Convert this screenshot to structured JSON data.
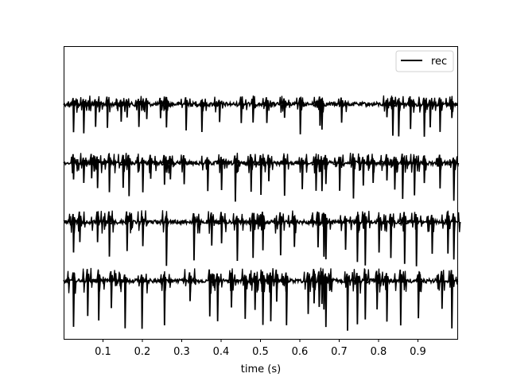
{
  "chart_data": {
    "type": "line",
    "title": "",
    "xlabel": "time (s)",
    "ylabel": "",
    "xlim": [
      0.0,
      1.0
    ],
    "xticks": [
      0.1,
      0.2,
      0.3,
      0.4,
      0.5,
      0.6,
      0.7,
      0.8,
      0.9
    ],
    "xtick_labels": [
      "0.1",
      "0.2",
      "0.3",
      "0.4",
      "0.5",
      "0.6",
      "0.7",
      "0.8",
      "0.9"
    ],
    "yticks_visible": false,
    "grid": false,
    "legend": {
      "location": "upper right",
      "entries": [
        "rec"
      ]
    },
    "line_color": "#000000",
    "series": [
      {
        "name": "rec",
        "channels": [
          {
            "channel": 1,
            "spike_times": [
              0.024,
              0.05,
              0.08,
              0.11,
              0.145,
              0.16,
              0.19,
              0.21,
              0.245,
              0.26,
              0.31,
              0.35,
              0.395,
              0.45,
              0.48,
              0.515,
              0.56,
              0.6,
              0.65,
              0.655,
              0.705,
              0.82,
              0.835,
              0.85,
              0.88,
              0.915,
              0.93,
              0.955,
              0.985
            ]
          },
          {
            "channel": 2,
            "spike_times": [
              0.024,
              0.05,
              0.07,
              0.085,
              0.115,
              0.15,
              0.165,
              0.2,
              0.22,
              0.255,
              0.27,
              0.305,
              0.365,
              0.4,
              0.435,
              0.475,
              0.5,
              0.52,
              0.56,
              0.605,
              0.64,
              0.655,
              0.665,
              0.7,
              0.735,
              0.76,
              0.785,
              0.82,
              0.84,
              0.86,
              0.89,
              0.915,
              0.955,
              0.99
            ]
          },
          {
            "channel": 3,
            "spike_times": [
              0.024,
              0.04,
              0.085,
              0.115,
              0.16,
              0.2,
              0.26,
              0.33,
              0.375,
              0.4,
              0.44,
              0.48,
              0.505,
              0.55,
              0.585,
              0.645,
              0.66,
              0.665,
              0.715,
              0.745,
              0.765,
              0.8,
              0.83,
              0.865,
              0.895,
              0.935,
              0.975,
              0.99
            ]
          },
          {
            "channel": 4,
            "spike_times": [
              0.024,
              0.06,
              0.088,
              0.12,
              0.155,
              0.198,
              0.255,
              0.32,
              0.37,
              0.39,
              0.425,
              0.46,
              0.485,
              0.505,
              0.525,
              0.54,
              0.565,
              0.62,
              0.635,
              0.648,
              0.655,
              0.66,
              0.665,
              0.72,
              0.745,
              0.765,
              0.795,
              0.82,
              0.855,
              0.9,
              0.96,
              0.985
            ]
          }
        ]
      }
    ]
  }
}
